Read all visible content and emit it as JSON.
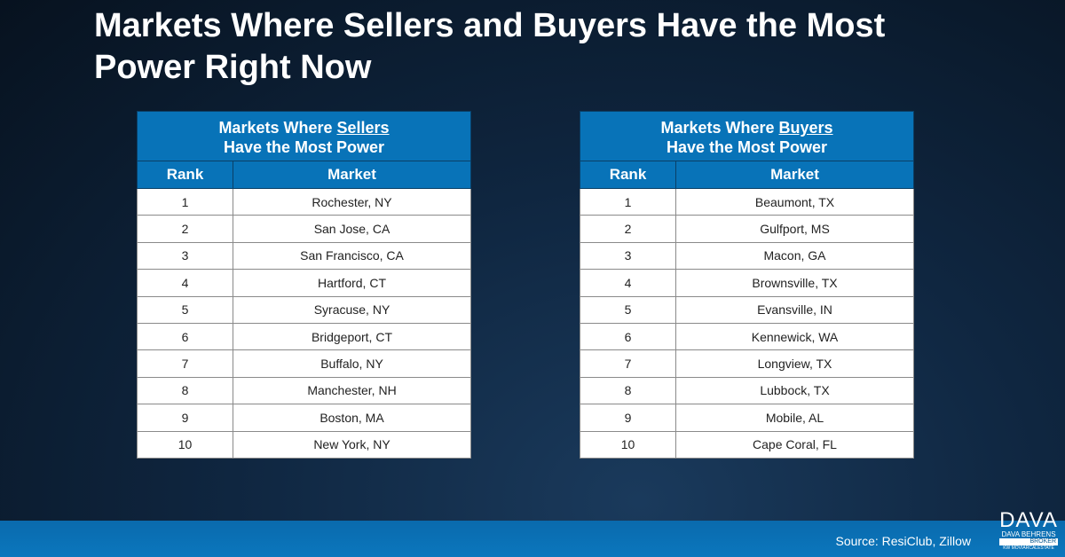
{
  "title": "Markets Where Sellers and Buyers Have the Most Power Right Now",
  "sellers": {
    "caption_pre": "Markets Where ",
    "caption_em": "Sellers",
    "caption_post": "Have the Most Power",
    "col_rank": "Rank",
    "col_market": "Market",
    "rows": [
      {
        "rank": "1",
        "market": "Rochester, NY"
      },
      {
        "rank": "2",
        "market": "San Jose, CA"
      },
      {
        "rank": "3",
        "market": "San Francisco, CA"
      },
      {
        "rank": "4",
        "market": "Hartford, CT"
      },
      {
        "rank": "5",
        "market": "Syracuse, NY"
      },
      {
        "rank": "6",
        "market": "Bridgeport, CT"
      },
      {
        "rank": "7",
        "market": "Buffalo, NY"
      },
      {
        "rank": "8",
        "market": "Manchester, NH"
      },
      {
        "rank": "9",
        "market": "Boston, MA"
      },
      {
        "rank": "10",
        "market": "New York, NY"
      }
    ]
  },
  "buyers": {
    "caption_pre": "Markets Where ",
    "caption_em": "Buyers",
    "caption_post": "Have the Most Power",
    "col_rank": "Rank",
    "col_market": "Market",
    "rows": [
      {
        "rank": "1",
        "market": "Beaumont, TX"
      },
      {
        "rank": "2",
        "market": "Gulfport, MS"
      },
      {
        "rank": "3",
        "market": "Macon, GA"
      },
      {
        "rank": "4",
        "market": "Brownsville, TX"
      },
      {
        "rank": "5",
        "market": "Evansville, IN"
      },
      {
        "rank": "6",
        "market": "Kennewick, WA"
      },
      {
        "rank": "7",
        "market": "Longview, TX"
      },
      {
        "rank": "8",
        "market": "Lubbock, TX"
      },
      {
        "rank": "9",
        "market": "Mobile, AL"
      },
      {
        "rank": "10",
        "market": "Cape Coral, FL"
      }
    ]
  },
  "source": "Source: ResiClub, Zillow",
  "logo": {
    "big": "DAVA",
    "name": "DAVA BEHRENS",
    "role": "BROKER",
    "tag": "KW MOVIARCALESTATE"
  }
}
